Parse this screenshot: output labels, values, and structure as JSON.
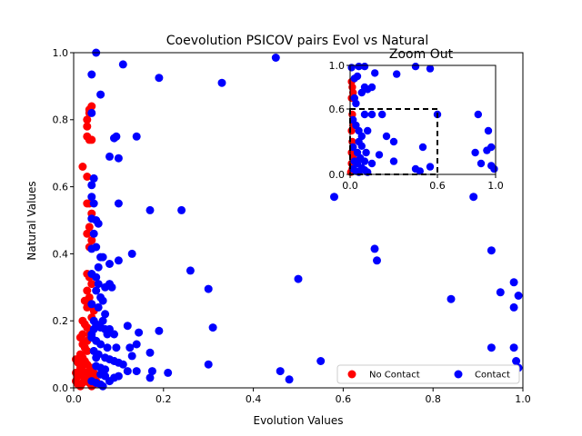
{
  "chart_data": [
    {
      "type": "scatter",
      "title": "Coevolution PSICOV pairs Evol vs Natural",
      "xlabel": "Evolution Values",
      "ylabel": "Natural Values",
      "xlim": [
        0,
        1
      ],
      "ylim": [
        0,
        1
      ],
      "xticks": [
        "0.0",
        "0.2",
        "0.4",
        "0.6",
        "0.8",
        "1.0"
      ],
      "yticks": [
        "0.0",
        "0.2",
        "0.4",
        "0.6",
        "0.8",
        "1.0"
      ],
      "grid": false,
      "legend_position": "lower-right",
      "series": [
        {
          "name": "No Contact",
          "color": "#ff0000",
          "points": [
            [
              0.02,
              0.66
            ],
            [
              0.03,
              0.75
            ],
            [
              0.035,
              0.74
            ],
            [
              0.04,
              0.74
            ],
            [
              0.03,
              0.78
            ],
            [
              0.03,
              0.8
            ],
            [
              0.035,
              0.82
            ],
            [
              0.04,
              0.84
            ],
            [
              0.035,
              0.83
            ],
            [
              0.03,
              0.63
            ],
            [
              0.03,
              0.55
            ],
            [
              0.035,
              0.55
            ],
            [
              0.04,
              0.52
            ],
            [
              0.035,
              0.48
            ],
            [
              0.03,
              0.46
            ],
            [
              0.04,
              0.44
            ],
            [
              0.035,
              0.42
            ],
            [
              0.03,
              0.34
            ],
            [
              0.035,
              0.33
            ],
            [
              0.04,
              0.31
            ],
            [
              0.03,
              0.29
            ],
            [
              0.035,
              0.27
            ],
            [
              0.04,
              0.25
            ],
            [
              0.03,
              0.24
            ],
            [
              0.025,
              0.26
            ],
            [
              0.02,
              0.2
            ],
            [
              0.025,
              0.19
            ],
            [
              0.03,
              0.18
            ],
            [
              0.02,
              0.16
            ],
            [
              0.015,
              0.15
            ],
            [
              0.02,
              0.13
            ],
            [
              0.025,
              0.12
            ],
            [
              0.03,
              0.11
            ],
            [
              0.015,
              0.1
            ],
            [
              0.02,
              0.09
            ],
            [
              0.025,
              0.08
            ],
            [
              0.03,
              0.07
            ],
            [
              0.015,
              0.06
            ],
            [
              0.02,
              0.05
            ],
            [
              0.025,
              0.04
            ],
            [
              0.03,
              0.03
            ],
            [
              0.005,
              0.02
            ],
            [
              0.01,
              0.01
            ],
            [
              0.015,
              0.005
            ],
            [
              0.02,
              0.015
            ],
            [
              0.025,
              0.025
            ],
            [
              0.01,
              0.035
            ],
            [
              0.005,
              0.045
            ],
            [
              0.015,
              0.055
            ],
            [
              0.02,
              0.065
            ],
            [
              0.01,
              0.075
            ],
            [
              0.005,
              0.085
            ],
            [
              0.035,
              0.015
            ],
            [
              0.04,
              0.025
            ],
            [
              0.045,
              0.035
            ],
            [
              0.04,
              0.005
            ],
            [
              0.045,
              0.01
            ],
            [
              0.05,
              0.02
            ],
            [
              0.035,
              0.05
            ],
            [
              0.04,
              0.06
            ],
            [
              0.045,
              0.045
            ],
            [
              0.03,
              0.14
            ],
            [
              0.035,
              0.16
            ],
            [
              0.04,
              0.21
            ],
            [
              0.045,
              0.23
            ]
          ]
        },
        {
          "name": "Contact",
          "color": "#0000ff",
          "points": [
            [
              0.05,
              1.0
            ],
            [
              0.11,
              0.965
            ],
            [
              0.04,
              0.935
            ],
            [
              0.19,
              0.925
            ],
            [
              0.33,
              0.91
            ],
            [
              0.45,
              0.985
            ],
            [
              0.06,
              0.875
            ],
            [
              0.04,
              0.82
            ],
            [
              0.09,
              0.745
            ],
            [
              0.095,
              0.75
            ],
            [
              0.14,
              0.75
            ],
            [
              0.08,
              0.69
            ],
            [
              0.1,
              0.685
            ],
            [
              0.045,
              0.625
            ],
            [
              0.04,
              0.605
            ],
            [
              0.1,
              0.55
            ],
            [
              0.17,
              0.53
            ],
            [
              0.24,
              0.53
            ],
            [
              0.58,
              0.57
            ],
            [
              0.89,
              0.57
            ],
            [
              0.04,
              0.505
            ],
            [
              0.05,
              0.5
            ],
            [
              0.055,
              0.49
            ],
            [
              0.045,
              0.46
            ],
            [
              0.04,
              0.415
            ],
            [
              0.06,
              0.39
            ],
            [
              0.065,
              0.39
            ],
            [
              0.08,
              0.37
            ],
            [
              0.1,
              0.38
            ],
            [
              0.13,
              0.4
            ],
            [
              0.26,
              0.35
            ],
            [
              0.67,
              0.415
            ],
            [
              0.675,
              0.38
            ],
            [
              0.93,
              0.41
            ],
            [
              0.04,
              0.34
            ],
            [
              0.05,
              0.33
            ],
            [
              0.055,
              0.31
            ],
            [
              0.07,
              0.3
            ],
            [
              0.08,
              0.31
            ],
            [
              0.085,
              0.3
            ],
            [
              0.5,
              0.325
            ],
            [
              0.3,
              0.295
            ],
            [
              0.06,
              0.27
            ],
            [
              0.065,
              0.26
            ],
            [
              0.04,
              0.25
            ],
            [
              0.055,
              0.24
            ],
            [
              0.07,
              0.22
            ],
            [
              0.045,
              0.2
            ],
            [
              0.05,
              0.19
            ],
            [
              0.06,
              0.18
            ],
            [
              0.07,
              0.175
            ],
            [
              0.08,
              0.175
            ],
            [
              0.075,
              0.16
            ],
            [
              0.09,
              0.16
            ],
            [
              0.12,
              0.185
            ],
            [
              0.145,
              0.165
            ],
            [
              0.19,
              0.17
            ],
            [
              0.31,
              0.18
            ],
            [
              0.84,
              0.265
            ],
            [
              0.95,
              0.285
            ],
            [
              0.98,
              0.315
            ],
            [
              0.99,
              0.275
            ],
            [
              0.98,
              0.24
            ],
            [
              0.04,
              0.15
            ],
            [
              0.05,
              0.14
            ],
            [
              0.06,
              0.13
            ],
            [
              0.075,
              0.12
            ],
            [
              0.095,
              0.12
            ],
            [
              0.125,
              0.12
            ],
            [
              0.14,
              0.13
            ],
            [
              0.17,
              0.105
            ],
            [
              0.13,
              0.095
            ],
            [
              0.07,
              0.09
            ],
            [
              0.08,
              0.085
            ],
            [
              0.09,
              0.08
            ],
            [
              0.1,
              0.075
            ],
            [
              0.11,
              0.07
            ],
            [
              0.05,
              0.065
            ],
            [
              0.06,
              0.06
            ],
            [
              0.07,
              0.055
            ],
            [
              0.12,
              0.05
            ],
            [
              0.14,
              0.05
            ],
            [
              0.175,
              0.05
            ],
            [
              0.21,
              0.045
            ],
            [
              0.3,
              0.07
            ],
            [
              0.46,
              0.05
            ],
            [
              0.48,
              0.025
            ],
            [
              0.55,
              0.08
            ],
            [
              0.61,
              0.055
            ],
            [
              0.93,
              0.12
            ],
            [
              0.98,
              0.12
            ],
            [
              0.985,
              0.08
            ],
            [
              0.99,
              0.06
            ],
            [
              0.06,
              0.04
            ],
            [
              0.07,
              0.035
            ],
            [
              0.09,
              0.03
            ],
            [
              0.1,
              0.035
            ],
            [
              0.04,
              0.02
            ],
            [
              0.05,
              0.015
            ],
            [
              0.06,
              0.01
            ],
            [
              0.08,
              0.02
            ],
            [
              0.065,
              0.005
            ],
            [
              0.17,
              0.03
            ],
            [
              0.045,
              0.11
            ],
            [
              0.05,
              0.09
            ],
            [
              0.055,
              0.1
            ],
            [
              0.04,
              0.16
            ],
            [
              0.045,
              0.175
            ],
            [
              0.065,
              0.2
            ],
            [
              0.05,
              0.29
            ],
            [
              0.055,
              0.36
            ],
            [
              0.05,
              0.42
            ],
            [
              0.045,
              0.55
            ],
            [
              0.04,
              0.57
            ]
          ]
        }
      ]
    },
    {
      "type": "scatter",
      "title": "Zoom Out",
      "xlim": [
        0,
        1
      ],
      "ylim": [
        0,
        1
      ],
      "xticks": [
        "0.0",
        "0.6",
        "1.0"
      ],
      "yticks": [
        "0.0",
        "0.6",
        "1.0"
      ],
      "zoom_box": {
        "x": [
          0,
          0.6
        ],
        "y": [
          0,
          0.6
        ]
      },
      "series": [
        {
          "name": "No Contact",
          "color": "#ff0000",
          "points": [
            [
              0.01,
              0.85
            ],
            [
              0.015,
              0.8
            ],
            [
              0.02,
              0.75
            ],
            [
              0.01,
              0.7
            ],
            [
              0.015,
              0.55
            ],
            [
              0.02,
              0.45
            ],
            [
              0.01,
              0.4
            ],
            [
              0.015,
              0.3
            ],
            [
              0.01,
              0.2
            ],
            [
              0.02,
              0.15
            ],
            [
              0.01,
              0.1
            ],
            [
              0.015,
              0.05
            ],
            [
              0.005,
              0.02
            ],
            [
              0.02,
              0.25
            ]
          ]
        },
        {
          "name": "Contact",
          "color": "#0000ff",
          "points": [
            [
              0.01,
              0.98
            ],
            [
              0.06,
              0.99
            ],
            [
              0.1,
              0.99
            ],
            [
              0.17,
              0.93
            ],
            [
              0.32,
              0.92
            ],
            [
              0.45,
              0.99
            ],
            [
              0.55,
              0.97
            ],
            [
              0.03,
              0.88
            ],
            [
              0.05,
              0.9
            ],
            [
              0.1,
              0.8
            ],
            [
              0.12,
              0.78
            ],
            [
              0.15,
              0.8
            ],
            [
              0.08,
              0.75
            ],
            [
              0.03,
              0.7
            ],
            [
              0.04,
              0.65
            ],
            [
              0.1,
              0.55
            ],
            [
              0.15,
              0.55
            ],
            [
              0.22,
              0.55
            ],
            [
              0.6,
              0.55
            ],
            [
              0.88,
              0.55
            ],
            [
              0.95,
              0.4
            ],
            [
              0.02,
              0.5
            ],
            [
              0.04,
              0.45
            ],
            [
              0.06,
              0.4
            ],
            [
              0.08,
              0.35
            ],
            [
              0.12,
              0.4
            ],
            [
              0.25,
              0.35
            ],
            [
              0.3,
              0.3
            ],
            [
              0.5,
              0.25
            ],
            [
              0.86,
              0.2
            ],
            [
              0.94,
              0.22
            ],
            [
              0.97,
              0.25
            ],
            [
              0.02,
              0.25
            ],
            [
              0.05,
              0.2
            ],
            [
              0.07,
              0.15
            ],
            [
              0.1,
              0.12
            ],
            [
              0.15,
              0.1
            ],
            [
              0.2,
              0.18
            ],
            [
              0.3,
              0.12
            ],
            [
              0.45,
              0.05
            ],
            [
              0.48,
              0.03
            ],
            [
              0.55,
              0.07
            ],
            [
              0.9,
              0.1
            ],
            [
              0.97,
              0.08
            ],
            [
              0.99,
              0.05
            ],
            [
              0.02,
              0.05
            ],
            [
              0.04,
              0.03
            ],
            [
              0.06,
              0.02
            ],
            [
              0.08,
              0.06
            ],
            [
              0.1,
              0.04
            ],
            [
              0.12,
              0.02
            ],
            [
              0.03,
              0.12
            ],
            [
              0.05,
              0.1
            ],
            [
              0.06,
              0.3
            ],
            [
              0.08,
              0.26
            ],
            [
              0.11,
              0.2
            ]
          ]
        }
      ]
    }
  ]
}
